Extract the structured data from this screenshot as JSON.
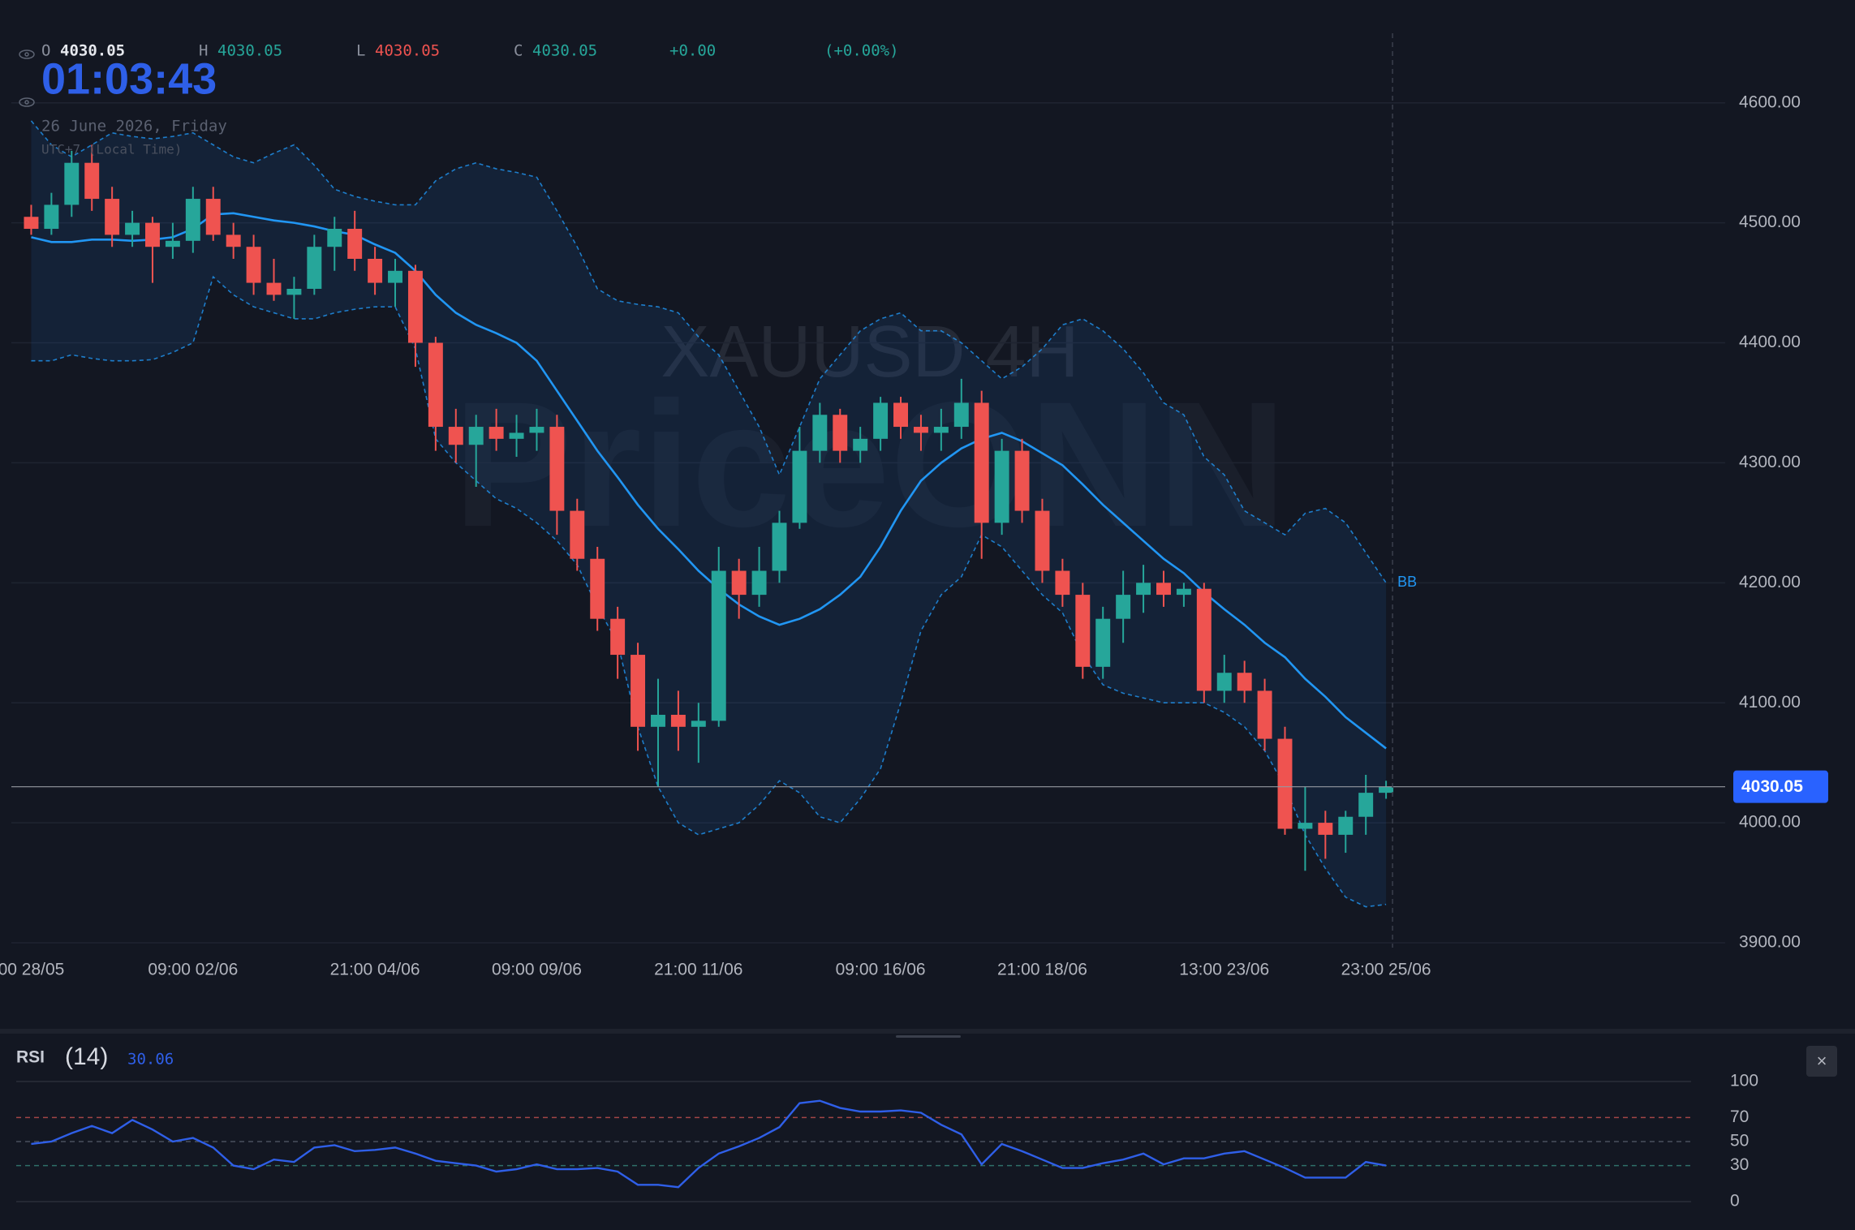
{
  "header": {
    "ohlc": [
      {
        "label": "O",
        "value": "4030.05"
      },
      {
        "label": "H",
        "value": "4030.05"
      },
      {
        "label": "L",
        "value": "4030.05"
      },
      {
        "label": "C",
        "value": "4030.05"
      }
    ],
    "change": "+0.00",
    "change_percent": "(+0.00%)",
    "clock": "01:03:43",
    "date": "26 June 2026, Friday",
    "timezone": "UTC+7 (Local Time)",
    "watermark_symbol": "XAUUSD 4H",
    "watermark_brand": "PriceONN",
    "close_button": "×"
  },
  "chart_data": [
    {
      "type": "candlestick",
      "categories": [
        "00 28/05",
        null,
        null,
        null,
        null,
        null,
        null,
        null,
        "09:00 02/06",
        null,
        null,
        null,
        null,
        null,
        null,
        null,
        null,
        "21:00 04/06",
        null,
        null,
        null,
        null,
        null,
        null,
        null,
        "09:00 09/06",
        null,
        null,
        null,
        null,
        null,
        null,
        null,
        "21:00 11/06",
        null,
        null,
        null,
        null,
        null,
        null,
        null,
        null,
        "09:00 16/06",
        null,
        null,
        null,
        null,
        null,
        null,
        null,
        "21:00 18/06",
        null,
        null,
        null,
        null,
        null,
        null,
        null,
        null,
        "13:00 23/06",
        null,
        null,
        null,
        null,
        null,
        null,
        null,
        "23:00 25/06"
      ],
      "open": [
        4505,
        4495,
        4515,
        4550,
        4520,
        4490,
        4500,
        4480,
        4485,
        4520,
        4490,
        4480,
        4450,
        4440,
        4445,
        4480,
        4495,
        4470,
        4450,
        4460,
        4400,
        4330,
        4315,
        4330,
        4320,
        4325,
        4330,
        4260,
        4220,
        4170,
        4140,
        4080,
        4090,
        4080,
        4085,
        4210,
        4190,
        4210,
        4250,
        4310,
        4340,
        4310,
        4320,
        4350,
        4330,
        4325,
        4330,
        4350,
        4250,
        4310,
        4260,
        4210,
        4190,
        4130,
        4170,
        4190,
        4200,
        4190,
        4195,
        4110,
        4125,
        4110,
        4070,
        3995,
        4000,
        3990,
        4005,
        4025
      ],
      "high": [
        4515,
        4525,
        4560,
        4565,
        4530,
        4510,
        4505,
        4500,
        4530,
        4530,
        4500,
        4490,
        4470,
        4455,
        4490,
        4505,
        4510,
        4480,
        4470,
        4465,
        4405,
        4345,
        4340,
        4345,
        4340,
        4345,
        4340,
        4270,
        4230,
        4180,
        4150,
        4120,
        4110,
        4100,
        4230,
        4220,
        4230,
        4260,
        4330,
        4350,
        4345,
        4330,
        4355,
        4355,
        4340,
        4345,
        4370,
        4360,
        4320,
        4320,
        4270,
        4220,
        4200,
        4180,
        4210,
        4215,
        4210,
        4200,
        4200,
        4140,
        4135,
        4120,
        4080,
        4030,
        4010,
        4010,
        4040,
        4035
      ],
      "low": [
        4490,
        4490,
        4505,
        4510,
        4480,
        4480,
        4450,
        4470,
        4475,
        4485,
        4470,
        4440,
        4435,
        4420,
        4440,
        4460,
        4460,
        4440,
        4430,
        4380,
        4310,
        4300,
        4280,
        4310,
        4305,
        4310,
        4240,
        4210,
        4160,
        4120,
        4060,
        4030,
        4060,
        4050,
        4080,
        4170,
        4180,
        4200,
        4245,
        4300,
        4300,
        4300,
        4310,
        4320,
        4310,
        4310,
        4320,
        4220,
        4240,
        4250,
        4200,
        4180,
        4120,
        4120,
        4150,
        4175,
        4180,
        4180,
        4100,
        4100,
        4100,
        4060,
        3990,
        3960,
        3970,
        3975,
        3990,
        4020
      ],
      "close": [
        4495,
        4515,
        4550,
        4520,
        4490,
        4500,
        4480,
        4485,
        4520,
        4490,
        4480,
        4450,
        4440,
        4445,
        4480,
        4495,
        4470,
        4450,
        4460,
        4400,
        4330,
        4315,
        4330,
        4320,
        4325,
        4330,
        4260,
        4220,
        4170,
        4140,
        4080,
        4090,
        4080,
        4085,
        4210,
        4190,
        4210,
        4250,
        4310,
        4340,
        4310,
        4320,
        4350,
        4330,
        4325,
        4330,
        4350,
        4250,
        4310,
        4260,
        4210,
        4190,
        4130,
        4170,
        4190,
        4200,
        4190,
        4195,
        4110,
        4125,
        4110,
        4070,
        3995,
        4000,
        3990,
        4005,
        4025,
        4030.05
      ],
      "up_color": "#26a69a",
      "down_color": "#ef5350",
      "bands": {
        "name": "BB",
        "color": "#2196f3",
        "upper": [
          4585,
          4565,
          4555,
          4565,
          4575,
          4572,
          4570,
          4572,
          4575,
          4565,
          4555,
          4550,
          4558,
          4565,
          4548,
          4528,
          4522,
          4518,
          4515,
          4515,
          4535,
          4545,
          4550,
          4545,
          4542,
          4538,
          4510,
          4480,
          4445,
          4435,
          4432,
          4430,
          4425,
          4405,
          4390,
          4360,
          4330,
          4290,
          4330,
          4370,
          4390,
          4410,
          4420,
          4425,
          4410,
          4410,
          4400,
          4385,
          4370,
          4380,
          4395,
          4415,
          4420,
          4410,
          4395,
          4375,
          4350,
          4340,
          4305,
          4290,
          4260,
          4250,
          4240,
          4258,
          4262,
          4250,
          4225,
          4200
        ],
        "middle": [
          4488,
          4484,
          4484,
          4486,
          4486,
          4485,
          4486,
          4488,
          4495,
          4507,
          4508,
          4505,
          4502,
          4500,
          4497,
          4493,
          4490,
          4482,
          4475,
          4460,
          4440,
          4425,
          4415,
          4408,
          4400,
          4385,
          4360,
          4335,
          4310,
          4288,
          4265,
          4245,
          4228,
          4210,
          4195,
          4182,
          4172,
          4165,
          4170,
          4178,
          4190,
          4205,
          4230,
          4260,
          4285,
          4300,
          4312,
          4320,
          4325,
          4318,
          4308,
          4298,
          4282,
          4265,
          4250,
          4235,
          4220,
          4208,
          4192,
          4178,
          4165,
          4150,
          4138,
          4120,
          4105,
          4088,
          4075,
          4062
        ],
        "lower": [
          4385,
          4385,
          4390,
          4387,
          4385,
          4385,
          4386,
          4392,
          4400,
          4455,
          4440,
          4430,
          4425,
          4420,
          4420,
          4425,
          4428,
          4430,
          4430,
          4395,
          4320,
          4300,
          4285,
          4270,
          4262,
          4250,
          4235,
          4215,
          4180,
          4150,
          4080,
          4030,
          4000,
          3990,
          3995,
          4000,
          4015,
          4035,
          4025,
          4005,
          4000,
          4020,
          4045,
          4100,
          4160,
          4190,
          4205,
          4240,
          4230,
          4210,
          4190,
          4175,
          4140,
          4115,
          4108,
          4104,
          4100,
          4100,
          4100,
          4092,
          4080,
          4060,
          4030,
          3990,
          3962,
          3938,
          3930,
          3932
        ]
      },
      "ylim": [
        3900,
        4660
      ],
      "yticks": [
        {
          "value": 3900,
          "label": "3900.00"
        },
        {
          "value": 4000,
          "label": "4000.00"
        },
        {
          "value": 4100,
          "label": "4100.00"
        },
        {
          "value": 4200,
          "label": "4200.00"
        },
        {
          "value": 4300,
          "label": "4300.00"
        },
        {
          "value": 4400,
          "label": "4400.00"
        },
        {
          "value": 4500,
          "label": "4500.00"
        },
        {
          "value": 4600,
          "label": "4600.00"
        }
      ],
      "grid": true
    },
    {
      "type": "line",
      "title": "RSI",
      "subtitle": "(14)",
      "color": "#2f5fe8",
      "values": [
        48,
        50,
        57,
        63,
        57,
        68,
        60,
        50,
        53,
        45,
        30,
        27,
        35,
        33,
        45,
        47,
        42,
        43,
        45,
        40,
        34,
        32,
        30,
        25,
        27,
        31,
        27,
        27,
        28,
        25,
        14,
        14,
        12,
        28,
        40,
        46,
        53,
        62,
        82,
        84,
        78,
        75,
        75,
        76,
        74,
        64,
        56,
        31,
        48,
        42,
        35,
        28,
        28,
        32,
        35,
        40,
        31,
        36,
        36,
        40,
        42,
        35,
        28,
        20,
        20,
        20,
        33,
        30.06
      ],
      "ylim": [
        0,
        100
      ],
      "yticks": [
        0,
        30,
        50,
        70,
        100
      ],
      "grid": true
    }
  ]
}
